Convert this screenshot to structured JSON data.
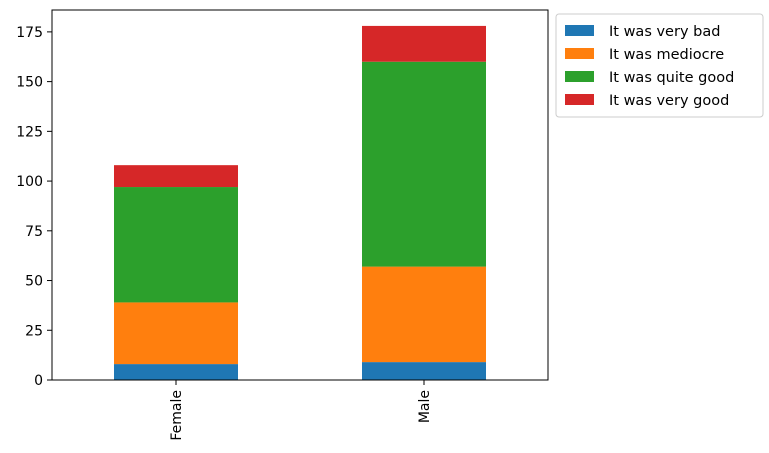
{
  "chart_data": {
    "type": "bar",
    "stacked": true,
    "title": "",
    "xlabel": "",
    "ylabel": "",
    "categories": [
      "Female",
      "Male"
    ],
    "ylim": [
      0,
      186
    ],
    "yticks": [
      0,
      25,
      50,
      75,
      100,
      125,
      150,
      175
    ],
    "grid": false,
    "legend_position": "outside-top-right",
    "series": [
      {
        "name": "It was very bad",
        "color": "#1f77b4",
        "values": [
          8,
          9
        ]
      },
      {
        "name": "It was mediocre",
        "color": "#ff7f0e",
        "values": [
          31,
          48
        ]
      },
      {
        "name": "It was quite good",
        "color": "#2ca02c",
        "values": [
          58,
          103
        ]
      },
      {
        "name": "It was very good",
        "color": "#d62728",
        "values": [
          11,
          18
        ]
      }
    ]
  }
}
